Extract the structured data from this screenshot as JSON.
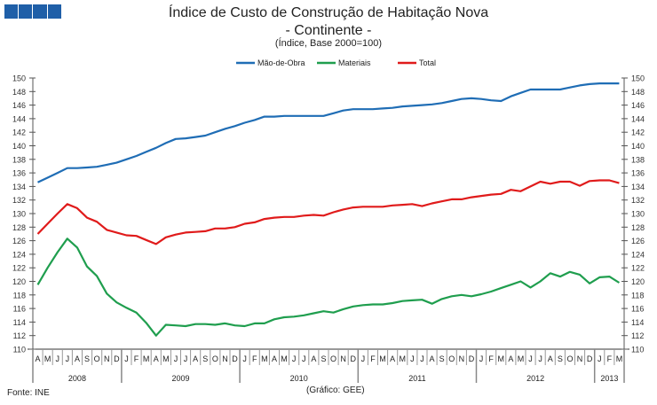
{
  "chart_data": {
    "type": "line",
    "title": "Índice de Custo de Construção de Habitação Nova",
    "subtitle": "- Continente -",
    "subtitle2": "(Índice, Base 2000=100)",
    "source": "Fonte: INE",
    "credit": "(Gráfico: GEE)",
    "ylim": [
      110,
      150
    ],
    "yticks": [
      110,
      112,
      114,
      116,
      118,
      120,
      122,
      124,
      126,
      128,
      130,
      132,
      134,
      136,
      138,
      140,
      142,
      144,
      146,
      148,
      150
    ],
    "legend_position": "top-center",
    "months": [
      "A",
      "M",
      "J",
      "J",
      "A",
      "S",
      "O",
      "N",
      "D",
      "J",
      "F",
      "M",
      "A",
      "M",
      "J",
      "J",
      "A",
      "S",
      "O",
      "N",
      "D",
      "J",
      "F",
      "M",
      "A",
      "M",
      "J",
      "J",
      "A",
      "S",
      "O",
      "N",
      "D",
      "J",
      "F",
      "M",
      "A",
      "M",
      "J",
      "J",
      "A",
      "S",
      "O",
      "N",
      "D",
      "J",
      "F",
      "M",
      "A",
      "M",
      "J",
      "J",
      "A",
      "S",
      "O",
      "N",
      "D",
      "J",
      "F",
      "M"
    ],
    "years": [
      {
        "label": "2008",
        "months": 9
      },
      {
        "label": "2009",
        "months": 12
      },
      {
        "label": "2010",
        "months": 12
      },
      {
        "label": "2011",
        "months": 12
      },
      {
        "label": "2012",
        "months": 12
      },
      {
        "label": "2013",
        "months": 3
      }
    ],
    "series": [
      {
        "name": "Mão-de-Obra",
        "color": "#1f6db5",
        "values": [
          134.6,
          135.3,
          136.0,
          136.7,
          136.7,
          136.8,
          136.9,
          137.2,
          137.5,
          138.0,
          138.5,
          139.1,
          139.7,
          140.4,
          141.0,
          141.1,
          141.3,
          141.5,
          142.0,
          142.5,
          142.9,
          143.4,
          143.8,
          144.3,
          144.3,
          144.4,
          144.4,
          144.4,
          144.4,
          144.4,
          144.8,
          145.2,
          145.4,
          145.4,
          145.4,
          145.5,
          145.6,
          145.8,
          145.9,
          146.0,
          146.1,
          146.3,
          146.6,
          146.9,
          147.0,
          146.9,
          146.7,
          146.6,
          147.3,
          147.8,
          148.3,
          148.3,
          148.3,
          148.3,
          148.6,
          148.9,
          149.1,
          149.2,
          149.2,
          149.2
        ]
      },
      {
        "name": "Materiais",
        "color": "#1f9e4e",
        "values": [
          119.5,
          122.0,
          124.3,
          126.3,
          125.0,
          122.2,
          120.8,
          118.2,
          116.9,
          116.1,
          115.4,
          113.9,
          112.0,
          113.6,
          113.5,
          113.4,
          113.7,
          113.7,
          113.6,
          113.8,
          113.5,
          113.4,
          113.8,
          113.8,
          114.4,
          114.7,
          114.8,
          115.0,
          115.3,
          115.6,
          115.4,
          115.9,
          116.3,
          116.5,
          116.6,
          116.6,
          116.8,
          117.1,
          117.2,
          117.3,
          116.7,
          117.4,
          117.8,
          118.0,
          117.8,
          118.1,
          118.5,
          119.0,
          119.5,
          120.0,
          119.1,
          120.0,
          121.2,
          120.7,
          121.4,
          121.0,
          119.7,
          120.6,
          120.7,
          119.8
        ]
      },
      {
        "name": "Total",
        "color": "#e01b1b",
        "values": [
          127.0,
          128.5,
          130.0,
          131.4,
          130.8,
          129.4,
          128.8,
          127.6,
          127.2,
          126.8,
          126.7,
          126.1,
          125.5,
          126.5,
          126.9,
          127.2,
          127.3,
          127.4,
          127.8,
          127.8,
          128.0,
          128.5,
          128.7,
          129.2,
          129.4,
          129.5,
          129.5,
          129.7,
          129.8,
          129.7,
          130.2,
          130.6,
          130.9,
          131.0,
          131.0,
          131.0,
          131.2,
          131.3,
          131.4,
          131.1,
          131.5,
          131.8,
          132.1,
          132.1,
          132.4,
          132.6,
          132.8,
          132.9,
          133.5,
          133.3,
          134.0,
          134.7,
          134.4,
          134.7,
          134.7,
          134.1,
          134.8,
          134.9,
          134.9,
          134.5
        ]
      }
    ]
  },
  "logo_color": "#1f5fa8"
}
